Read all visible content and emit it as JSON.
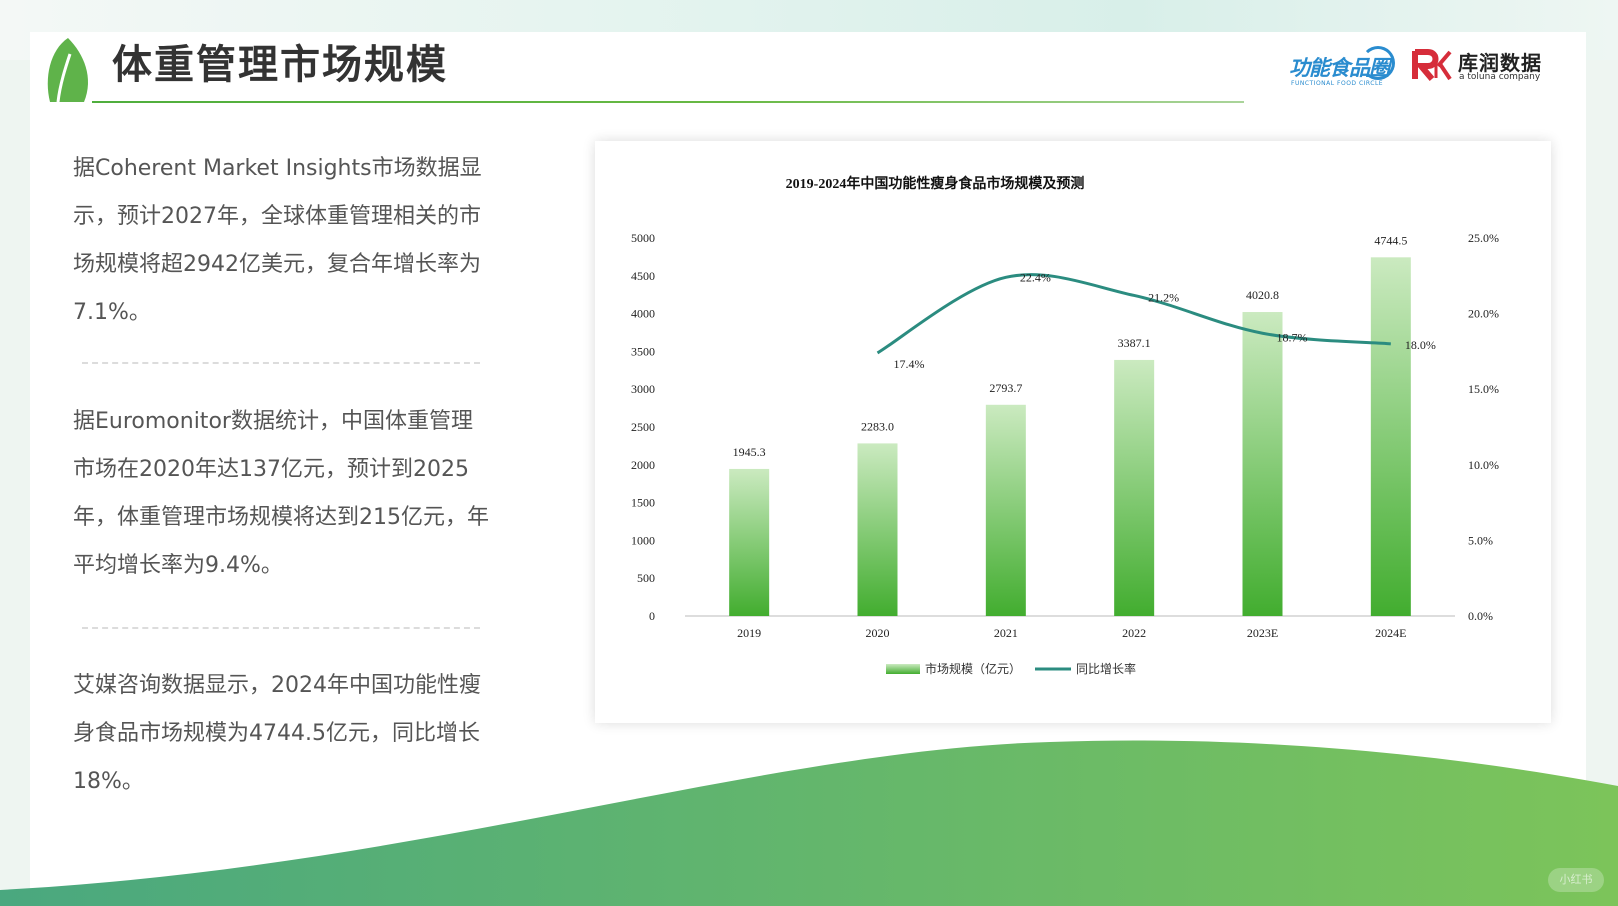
{
  "header": {
    "title": "体重管理市场规模",
    "logos": [
      {
        "name": "功能食品圈",
        "sub": "FUNCTIONAL FOOD CIRCLE"
      },
      {
        "name": "库润数据",
        "sub": "a toluna company"
      }
    ]
  },
  "paragraphs": [
    "据Coherent Market Insights市场数据显示，预计2027年，全球体重管理相关的市场规模将超2942亿美元，复合年增长率为7.1%。",
    "据Euromonitor数据统计，中国体重管理市场在2020年达137亿元，预计到2025年，体重管理市场规模将达到215亿元，年平均增长率为9.4%。",
    "艾媒咨询数据显示，2024年中国功能性瘦身食品市场规模为4744.5亿元，同比增长18%。"
  ],
  "watermark": "小红书",
  "colors": {
    "accent_green": "#4fae3d",
    "bar_top": "#cbeac0",
    "bar_bottom": "#42ad2f",
    "line": "#2b8c80",
    "wave_left": "#4aa87f",
    "wave_right": "#7cc45a"
  },
  "chart_data": {
    "type": "bar",
    "title": "2019-2024年中国功能性瘦身食品市场规模及预测",
    "categories": [
      "2019",
      "2020",
      "2021",
      "2022",
      "2023E",
      "2024E"
    ],
    "series": [
      {
        "name": "市场规模（亿元）",
        "type": "bar",
        "axis": "left",
        "values": [
          1945.3,
          2283.0,
          2793.7,
          3387.1,
          4020.8,
          4744.5
        ],
        "labels": [
          "1945.3",
          "2283.0",
          "2793.7",
          "3387.1",
          "4020.8",
          "4744.5"
        ]
      },
      {
        "name": "同比增长率",
        "type": "line",
        "axis": "right",
        "values": [
          null,
          17.4,
          22.4,
          21.2,
          18.7,
          18.0
        ],
        "labels": [
          "",
          "17.4%",
          "22.4%",
          "21.2%",
          "18.7%",
          "18.0%"
        ]
      }
    ],
    "ylim": [
      0,
      5000
    ],
    "yticks": [
      "5000",
      "4500",
      "4000",
      "3500",
      "3000",
      "2500",
      "2000",
      "1500",
      "1000",
      "500",
      "0"
    ],
    "y2lim": [
      0,
      25
    ],
    "y2ticks": [
      "25.0%",
      "20.0%",
      "15.0%",
      "10.0%",
      "5.0%",
      "0.0%"
    ],
    "grid": false,
    "legend": "bottom"
  }
}
